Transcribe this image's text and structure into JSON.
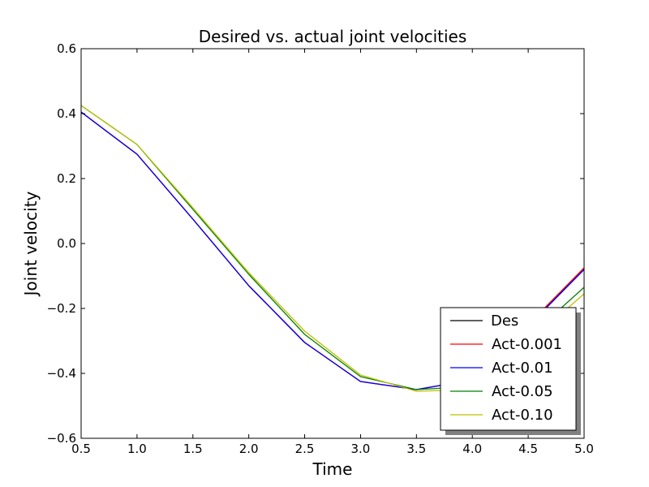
{
  "chart_data": {
    "type": "line",
    "title": "Desired vs. actual joint velocities",
    "xlabel": "Time",
    "ylabel": "Joint velocity",
    "xlim": [
      0.5,
      5.0
    ],
    "ylim": [
      -0.6,
      0.6
    ],
    "xticks": [
      "0.5",
      "1.0",
      "1.5",
      "2.0",
      "2.5",
      "3.0",
      "3.5",
      "4.0",
      "4.5",
      "5.0"
    ],
    "yticks": [
      "0.6",
      "0.4",
      "0.2",
      "0.0",
      "−0.2",
      "−0.4",
      "−0.6"
    ],
    "grid": false,
    "legend_position": "lower-right",
    "x": [
      0.5,
      1.0,
      1.5,
      2.0,
      2.5,
      3.0,
      3.5,
      4.0,
      4.5,
      5.0
    ],
    "series": [
      {
        "name": "Des",
        "color": "#000000",
        "values": [
          0.405,
          0.275,
          0.075,
          -0.13,
          -0.305,
          -0.425,
          -0.45,
          -0.42,
          -0.25,
          -0.08
        ]
      },
      {
        "name": "Act-0.001",
        "color": "#ff0000",
        "values": [
          0.405,
          0.275,
          0.075,
          -0.13,
          -0.305,
          -0.425,
          -0.45,
          -0.42,
          -0.25,
          -0.075
        ]
      },
      {
        "name": "Act-0.01",
        "color": "#0000ff",
        "values": [
          0.405,
          0.275,
          0.075,
          -0.13,
          -0.305,
          -0.425,
          -0.45,
          -0.42,
          -0.255,
          -0.08
        ]
      },
      {
        "name": "Act-0.05",
        "color": "#008000",
        "values": [
          0.425,
          0.305,
          0.105,
          -0.095,
          -0.28,
          -0.41,
          -0.45,
          -0.44,
          -0.29,
          -0.135
        ]
      },
      {
        "name": "Act-0.10",
        "color": "#bfbf00",
        "values": [
          0.425,
          0.305,
          0.11,
          -0.09,
          -0.27,
          -0.405,
          -0.455,
          -0.45,
          -0.305,
          -0.155
        ]
      }
    ]
  }
}
